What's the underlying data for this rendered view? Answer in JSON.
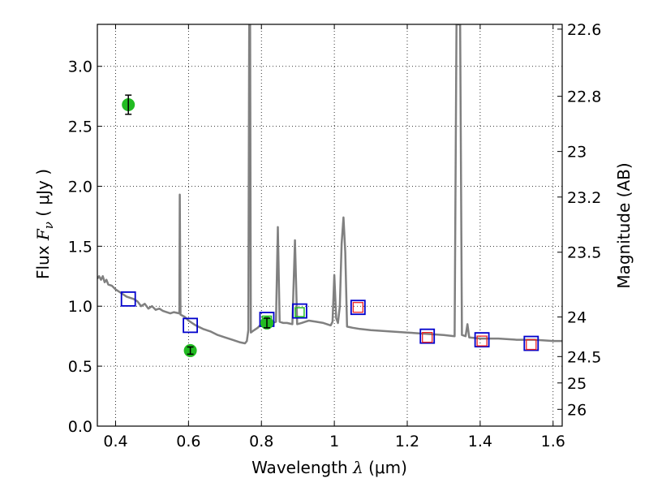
{
  "chart_data": {
    "type": "line",
    "xlabel_main": "Wavelength",
    "xlabel_sym": "λ",
    "xlabel_unit": "(μm)",
    "ylabel_main": "Flux",
    "ylabel_sym": "F",
    "ylabel_sub": "ν",
    "ylabel_unit": "( μJy )",
    "y2label": "Magnitude (AB)",
    "xlim": [
      0.35,
      1.625
    ],
    "ylim": [
      0.0,
      3.35
    ],
    "grid": true,
    "x_ticks": [
      {
        "value": 0.4,
        "label": "0.4"
      },
      {
        "value": 0.6,
        "label": "0.6"
      },
      {
        "value": 0.8,
        "label": "0.8"
      },
      {
        "value": 1.0,
        "label": "1"
      },
      {
        "value": 1.2,
        "label": "1.2"
      },
      {
        "value": 1.4,
        "label": "1.4"
      },
      {
        "value": 1.6,
        "label": "1.6"
      }
    ],
    "y_ticks": [
      {
        "value": 0.0,
        "label": "0.0"
      },
      {
        "value": 0.5,
        "label": "0.5"
      },
      {
        "value": 1.0,
        "label": "1.0"
      },
      {
        "value": 1.5,
        "label": "1.5"
      },
      {
        "value": 2.0,
        "label": "2.0"
      },
      {
        "value": 2.5,
        "label": "2.5"
      },
      {
        "value": 3.0,
        "label": "3.0"
      }
    ],
    "y2_ticks": [
      {
        "flux": 3.31,
        "label": "22.6"
      },
      {
        "flux": 2.75,
        "label": "22.8"
      },
      {
        "flux": 2.29,
        "label": "23"
      },
      {
        "flux": 1.91,
        "label": "23.2"
      },
      {
        "flux": 1.45,
        "label": "23.5"
      },
      {
        "flux": 0.91,
        "label": "24"
      },
      {
        "flux": 0.58,
        "label": "24.5"
      },
      {
        "flux": 0.36,
        "label": "25"
      },
      {
        "flux": 0.14,
        "label": "26"
      }
    ],
    "model_spectrum": {
      "color": "#808080",
      "points": [
        [
          0.35,
          1.23
        ],
        [
          0.355,
          1.25
        ],
        [
          0.36,
          1.22
        ],
        [
          0.365,
          1.25
        ],
        [
          0.37,
          1.2
        ],
        [
          0.375,
          1.22
        ],
        [
          0.38,
          1.18
        ],
        [
          0.39,
          1.17
        ],
        [
          0.4,
          1.14
        ],
        [
          0.41,
          1.12
        ],
        [
          0.42,
          1.1
        ],
        [
          0.43,
          1.08
        ],
        [
          0.44,
          1.07
        ],
        [
          0.45,
          1.06
        ],
        [
          0.46,
          1.04
        ],
        [
          0.47,
          1.0
        ],
        [
          0.48,
          1.02
        ],
        [
          0.49,
          0.98
        ],
        [
          0.5,
          1.0
        ],
        [
          0.51,
          0.97
        ],
        [
          0.52,
          0.98
        ],
        [
          0.53,
          0.96
        ],
        [
          0.54,
          0.95
        ],
        [
          0.55,
          0.94
        ],
        [
          0.56,
          0.95
        ],
        [
          0.575,
          0.94
        ],
        [
          0.576,
          1.93
        ],
        [
          0.578,
          0.93
        ],
        [
          0.59,
          0.91
        ],
        [
          0.6,
          0.88
        ],
        [
          0.62,
          0.84
        ],
        [
          0.64,
          0.81
        ],
        [
          0.66,
          0.79
        ],
        [
          0.68,
          0.76
        ],
        [
          0.7,
          0.74
        ],
        [
          0.72,
          0.72
        ],
        [
          0.74,
          0.7
        ],
        [
          0.755,
          0.69
        ],
        [
          0.76,
          0.71
        ],
        [
          0.764,
          0.8
        ],
        [
          0.7665,
          3.35
        ],
        [
          0.769,
          3.35
        ],
        [
          0.771,
          0.78
        ],
        [
          0.78,
          0.8
        ],
        [
          0.79,
          0.82
        ],
        [
          0.8,
          0.85
        ],
        [
          0.81,
          0.86
        ],
        [
          0.82,
          0.87
        ],
        [
          0.83,
          0.86
        ],
        [
          0.84,
          0.87
        ],
        [
          0.845,
          1.66
        ],
        [
          0.85,
          0.87
        ],
        [
          0.86,
          0.86
        ],
        [
          0.87,
          0.86
        ],
        [
          0.885,
          0.85
        ],
        [
          0.892,
          1.55
        ],
        [
          0.898,
          0.85
        ],
        [
          0.91,
          0.86
        ],
        [
          0.92,
          0.87
        ],
        [
          0.93,
          0.88
        ],
        [
          0.95,
          0.87
        ],
        [
          0.97,
          0.86
        ],
        [
          0.99,
          0.84
        ],
        [
          0.995,
          0.87
        ],
        [
          1.0,
          1.26
        ],
        [
          1.005,
          0.9
        ],
        [
          1.01,
          0.86
        ],
        [
          1.015,
          1.0
        ],
        [
          1.02,
          1.52
        ],
        [
          1.025,
          1.74
        ],
        [
          1.03,
          1.45
        ],
        [
          1.035,
          0.83
        ],
        [
          1.05,
          0.82
        ],
        [
          1.07,
          0.81
        ],
        [
          1.1,
          0.8
        ],
        [
          1.15,
          0.79
        ],
        [
          1.2,
          0.78
        ],
        [
          1.25,
          0.77
        ],
        [
          1.3,
          0.76
        ],
        [
          1.33,
          0.75
        ],
        [
          1.335,
          3.35
        ],
        [
          1.345,
          3.35
        ],
        [
          1.35,
          0.76
        ],
        [
          1.36,
          0.75
        ],
        [
          1.365,
          0.85
        ],
        [
          1.37,
          0.74
        ],
        [
          1.4,
          0.73
        ],
        [
          1.45,
          0.73
        ],
        [
          1.5,
          0.72
        ],
        [
          1.55,
          0.72
        ],
        [
          1.6,
          0.71
        ],
        [
          1.625,
          0.71
        ]
      ]
    },
    "observed_points": {
      "color": "#22bb22",
      "points": [
        {
          "x": 0.435,
          "y": 2.68,
          "err": 0.08
        },
        {
          "x": 0.605,
          "y": 0.63,
          "err": 0.03
        },
        {
          "x": 0.815,
          "y": 0.86,
          "err": 0.04
        }
      ]
    },
    "model_bands_blue": {
      "color": "#0000cc",
      "points": [
        {
          "x": 0.435,
          "y": 1.06
        },
        {
          "x": 0.605,
          "y": 0.84
        },
        {
          "x": 0.815,
          "y": 0.89
        },
        {
          "x": 0.905,
          "y": 0.96
        },
        {
          "x": 1.065,
          "y": 0.99
        },
        {
          "x": 1.255,
          "y": 0.75
        },
        {
          "x": 1.405,
          "y": 0.72
        },
        {
          "x": 1.54,
          "y": 0.69
        }
      ]
    },
    "inner_green": {
      "color": "#22bb22",
      "points": [
        {
          "x": 0.815,
          "y": 0.88
        },
        {
          "x": 0.905,
          "y": 0.95
        }
      ]
    },
    "inner_red": {
      "color": "#ee2222",
      "points": [
        {
          "x": 1.065,
          "y": 0.99
        },
        {
          "x": 1.255,
          "y": 0.74
        },
        {
          "x": 1.405,
          "y": 0.71
        },
        {
          "x": 1.54,
          "y": 0.68
        }
      ]
    }
  }
}
